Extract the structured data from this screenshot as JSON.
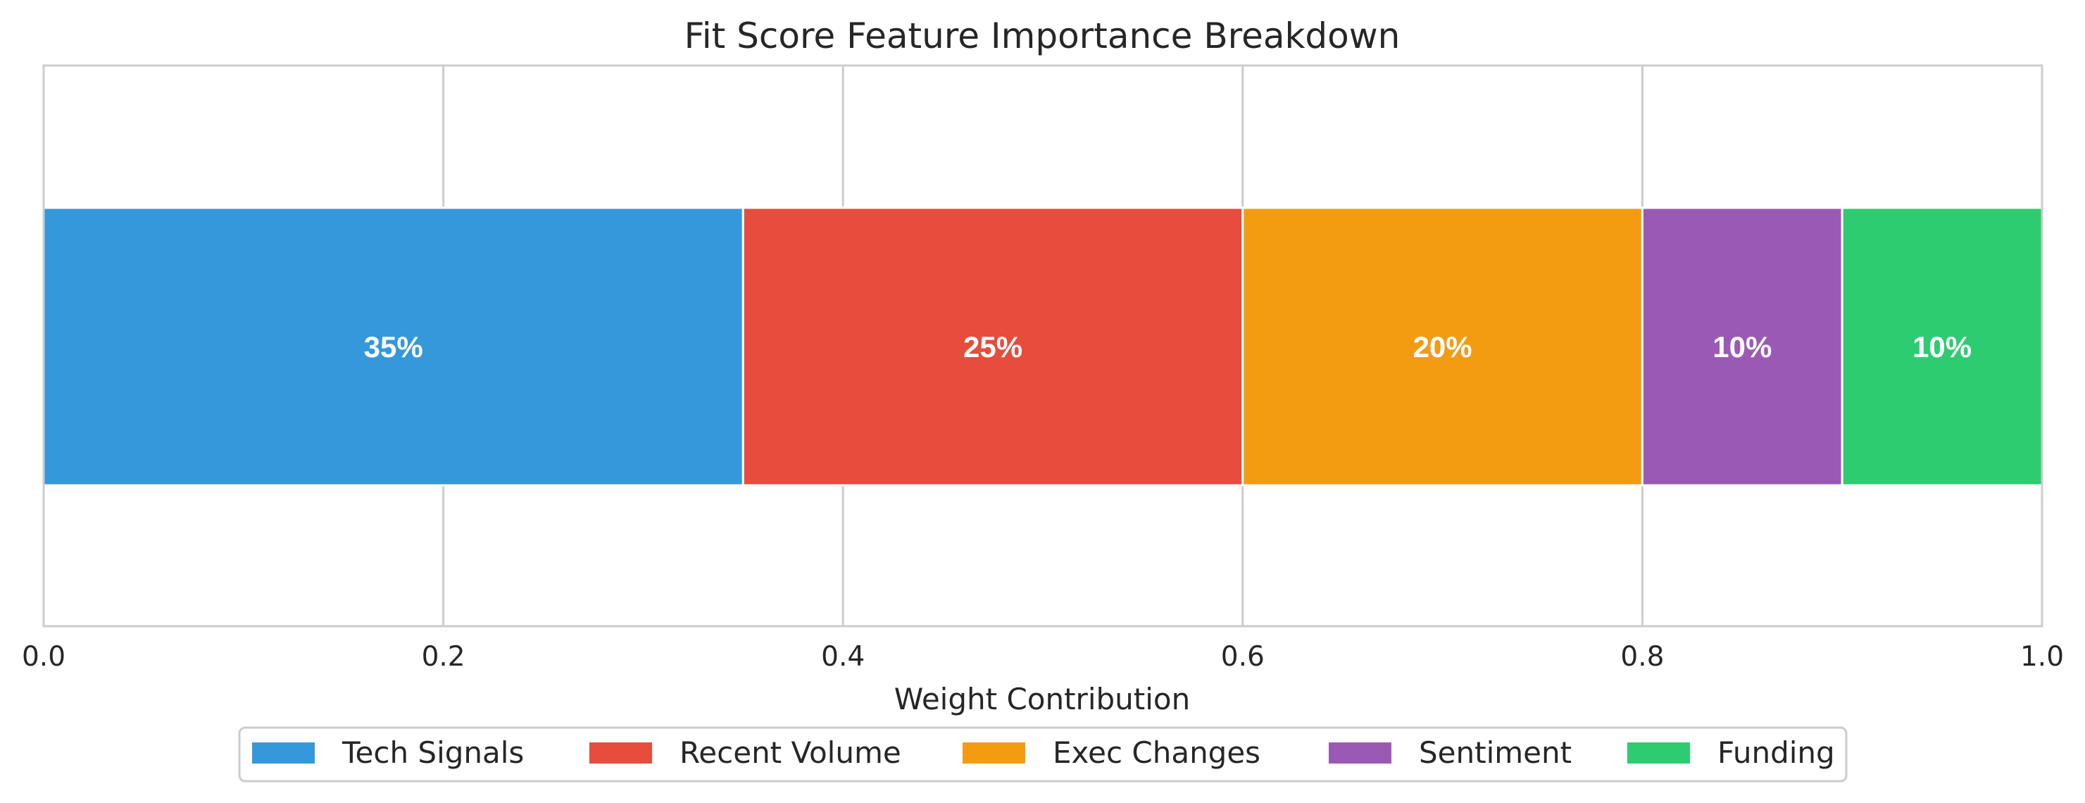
{
  "chart_data": {
    "type": "bar",
    "orientation": "horizontal",
    "stacked": true,
    "title": "Fit Score Feature Importance Breakdown",
    "xlabel": "Weight Contribution",
    "ylabel": "",
    "xlim": [
      0.0,
      1.0
    ],
    "xticks": [
      0.0,
      0.2,
      0.4,
      0.6,
      0.8,
      1.0
    ],
    "xtick_labels": [
      "0.0",
      "0.2",
      "0.4",
      "0.6",
      "0.8",
      "1.0"
    ],
    "grid": true,
    "legend_position": "bottom-center",
    "series": [
      {
        "name": "Tech Signals",
        "value": 0.35,
        "label": "35%",
        "color": "#3498db"
      },
      {
        "name": "Recent Volume",
        "value": 0.25,
        "label": "25%",
        "color": "#e74c3c"
      },
      {
        "name": "Exec Changes",
        "value": 0.2,
        "label": "20%",
        "color": "#f39c12"
      },
      {
        "name": "Sentiment",
        "value": 0.1,
        "label": "10%",
        "color": "#9b59b6"
      },
      {
        "name": "Funding",
        "value": 0.1,
        "label": "10%",
        "color": "#2ecc71"
      }
    ]
  }
}
